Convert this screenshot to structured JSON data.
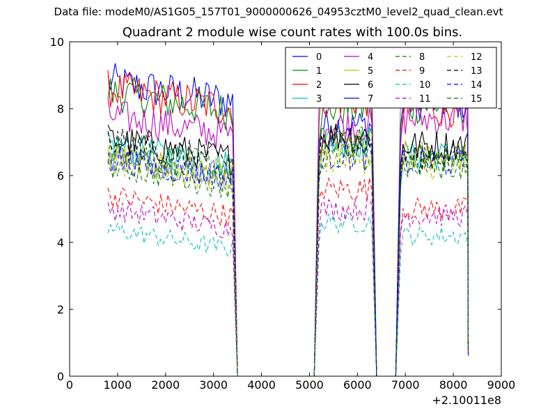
{
  "figure": {
    "supertitle": "Data file: modeM0/AS1G05_157T01_9000000626_04953cztM0_level2_quad_clean.evt"
  },
  "chart_data": {
    "type": "line",
    "title": "Quadrant 2 module wise count rates with 100.0s bins.",
    "xlabel": "",
    "ylabel": "",
    "x_offset_label": "+2.10011e8",
    "xlim": [
      0,
      9000
    ],
    "ylim": [
      0,
      10
    ],
    "x_ticks": [
      "0",
      "1000",
      "2000",
      "3000",
      "4000",
      "5000",
      "6000",
      "7000",
      "8000",
      "9000"
    ],
    "y_ticks": [
      "0",
      "2",
      "4",
      "6",
      "8",
      "10"
    ],
    "grid": false,
    "legend_position": "top-right",
    "legend_columns": 4,
    "segments": [
      {
        "x_start": 800,
        "x_end": 3400
      },
      {
        "x_start": 5200,
        "x_end": 6300
      },
      {
        "x_start": 6900,
        "x_end": 8300
      }
    ],
    "gaps": [
      [
        3500,
        5100
      ],
      [
        6400,
        6800
      ]
    ],
    "series": [
      {
        "name": "0",
        "color": "#0000ff",
        "style": "solid",
        "level_seg1": 8.5,
        "level_seg2": 7.5,
        "level_seg3": 8.2
      },
      {
        "name": "1",
        "color": "#008000",
        "style": "solid",
        "level_seg1": 8.2,
        "level_seg2": 8.0,
        "level_seg3": 8.1
      },
      {
        "name": "2",
        "color": "#ff0000",
        "style": "solid",
        "level_seg1": 8.3,
        "level_seg2": 8.3,
        "level_seg3": 8.0
      },
      {
        "name": "3",
        "color": "#00bfbf",
        "style": "solid",
        "level_seg1": 6.6,
        "level_seg2": 7.0,
        "level_seg3": 6.6
      },
      {
        "name": "4",
        "color": "#bf00bf",
        "style": "solid",
        "level_seg1": 7.5,
        "level_seg2": 7.5,
        "level_seg3": 7.7
      },
      {
        "name": "5",
        "color": "#bfbf00",
        "style": "solid",
        "level_seg1": 6.3,
        "level_seg2": 6.9,
        "level_seg3": 6.6
      },
      {
        "name": "6",
        "color": "#000000",
        "style": "solid",
        "level_seg1": 6.8,
        "level_seg2": 7.2,
        "level_seg3": 6.9
      },
      {
        "name": "7",
        "color": "#0000ff",
        "style": "solid",
        "level_seg1": 6.3,
        "level_seg2": 9.0,
        "level_seg3": 8.8
      },
      {
        "name": "8",
        "color": "#008000",
        "style": "dashed",
        "level_seg1": 6.5,
        "level_seg2": 7.0,
        "level_seg3": 6.5
      },
      {
        "name": "9",
        "color": "#ff0000",
        "style": "dashed",
        "level_seg1": 5.1,
        "level_seg2": 5.6,
        "level_seg3": 5.0
      },
      {
        "name": "10",
        "color": "#00bfbf",
        "style": "dashed",
        "level_seg1": 4.1,
        "level_seg2": 4.6,
        "level_seg3": 4.2
      },
      {
        "name": "11",
        "color": "#bf00bf",
        "style": "dashed",
        "level_seg1": 4.7,
        "level_seg2": 5.0,
        "level_seg3": 4.8
      },
      {
        "name": "12",
        "color": "#bfbf00",
        "style": "dashed",
        "level_seg1": 6.1,
        "level_seg2": 6.5,
        "level_seg3": 6.3
      },
      {
        "name": "13",
        "color": "#000000",
        "style": "dashed",
        "level_seg1": 6.7,
        "level_seg2": 7.0,
        "level_seg3": 6.6
      },
      {
        "name": "14",
        "color": "#0000ff",
        "style": "dashed",
        "level_seg1": 6.2,
        "level_seg2": 6.6,
        "level_seg3": 6.4
      },
      {
        "name": "15",
        "color": "#008000",
        "style": "dashed",
        "level_seg1": 6.0,
        "level_seg2": 6.5,
        "level_seg3": 6.3
      }
    ]
  }
}
